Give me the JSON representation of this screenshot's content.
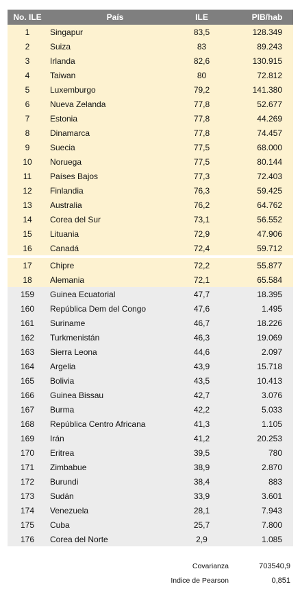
{
  "header": {
    "no": "No. ILE",
    "pais": "País",
    "ile": "ILE",
    "pib": "PIB/hab"
  },
  "top_rows": [
    {
      "no": "1",
      "pais": "Singapur",
      "ile": "83,5",
      "pib": "128.349"
    },
    {
      "no": "2",
      "pais": "Suiza",
      "ile": "83",
      "pib": "89.243"
    },
    {
      "no": "3",
      "pais": "Irlanda",
      "ile": "82,6",
      "pib": "130.915"
    },
    {
      "no": "4",
      "pais": "Taiwan",
      "ile": "80",
      "pib": "72.812"
    },
    {
      "no": "5",
      "pais": "Luxemburgo",
      "ile": "79,2",
      "pib": "141.380"
    },
    {
      "no": "6",
      "pais": "Nueva Zelanda",
      "ile": "77,8",
      "pib": "52.677"
    },
    {
      "no": "7",
      "pais": "Estonia",
      "ile": "77,8",
      "pib": "44.269"
    },
    {
      "no": "8",
      "pais": "Dinamarca",
      "ile": "77,8",
      "pib": "74.457"
    },
    {
      "no": "9",
      "pais": "Suecia",
      "ile": "77,5",
      "pib": "68.000"
    },
    {
      "no": "10",
      "pais": "Noruega",
      "ile": "77,5",
      "pib": "80.144"
    },
    {
      "no": "11",
      "pais": "Países Bajos",
      "ile": "77,3",
      "pib": "72.403"
    },
    {
      "no": "12",
      "pais": "Finlandia",
      "ile": "76,3",
      "pib": "59.425"
    },
    {
      "no": "13",
      "pais": "Australia",
      "ile": "76,2",
      "pib": "64.762"
    },
    {
      "no": "14",
      "pais": "Corea del Sur",
      "ile": "73,1",
      "pib": "56.552"
    },
    {
      "no": "15",
      "pais": "Lituania",
      "ile": "72,9",
      "pib": "47.906"
    },
    {
      "no": "16",
      "pais": "Canadá",
      "ile": "72,4",
      "pib": "59.712"
    }
  ],
  "mid_rows": [
    {
      "no": "17",
      "pais": "Chipre",
      "ile": "72,2",
      "pib": "55.877"
    },
    {
      "no": "18",
      "pais": "Alemania",
      "ile": "72,1",
      "pib": "65.584"
    }
  ],
  "bottom_rows": [
    {
      "no": "159",
      "pais": "Guinea Ecuatorial",
      "ile": "47,7",
      "pib": "18.395"
    },
    {
      "no": "160",
      "pais": "República Dem del Congo",
      "ile": "47,6",
      "pib": "1.495"
    },
    {
      "no": "161",
      "pais": "Suriname",
      "ile": "46,7",
      "pib": "18.226"
    },
    {
      "no": "162",
      "pais": "Turkmenistán",
      "ile": "46,3",
      "pib": "19.069"
    },
    {
      "no": "163",
      "pais": "Sierra Leona",
      "ile": "44,6",
      "pib": "2.097"
    },
    {
      "no": "164",
      "pais": "Argelia",
      "ile": "43,9",
      "pib": "15.718"
    },
    {
      "no": "165",
      "pais": "Bolivia",
      "ile": "43,5",
      "pib": "10.413"
    },
    {
      "no": "166",
      "pais": "Guinea Bissau",
      "ile": "42,7",
      "pib": "3.076"
    },
    {
      "no": "167",
      "pais": "Burma",
      "ile": "42,2",
      "pib": "5.033"
    },
    {
      "no": "168",
      "pais": "República Centro Africana",
      "ile": "41,3",
      "pib": "1.105"
    },
    {
      "no": "169",
      "pais": "Irán",
      "ile": "41,2",
      "pib": "20.253"
    },
    {
      "no": "170",
      "pais": "Eritrea",
      "ile": "39,5",
      "pib": "780"
    },
    {
      "no": "171",
      "pais": "Zimbabue",
      "ile": "38,9",
      "pib": "2.870"
    },
    {
      "no": "172",
      "pais": "Burundi",
      "ile": "38,4",
      "pib": "883"
    },
    {
      "no": "173",
      "pais": "Sudán",
      "ile": "33,9",
      "pib": "3.601"
    },
    {
      "no": "174",
      "pais": "Venezuela",
      "ile": "28,1",
      "pib": "7.943"
    },
    {
      "no": "175",
      "pais": "Cuba",
      "ile": "25,7",
      "pib": "7.800"
    },
    {
      "no": "176",
      "pais": "Corea del Norte",
      "ile": "2,9",
      "pib": "1.085"
    }
  ],
  "stats": {
    "cov_label": "Covarianza",
    "cov_value": "703540,9",
    "pearson_label": "Indice de Pearson",
    "pearson_value": "0,851"
  },
  "colors": {
    "header": "#7f7f7f",
    "top": "#fdf2d0",
    "bottom": "#ececec"
  }
}
